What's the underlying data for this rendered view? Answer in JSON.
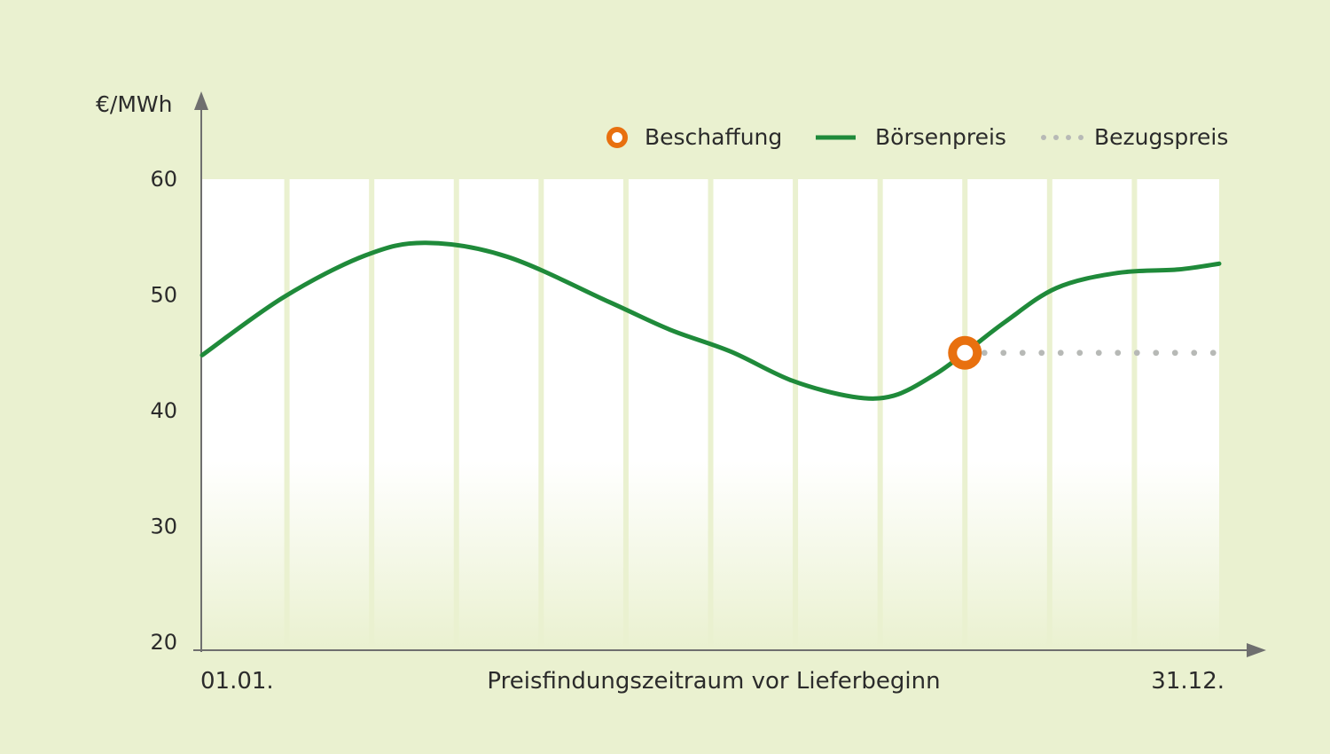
{
  "chart_data": {
    "type": "line",
    "ylabel": "€/MWh",
    "xlabel": "Preisfindungszeitraum vor Lieferbeginn",
    "x_start_label": "01.01.",
    "x_end_label": "31.12.",
    "ylim": [
      20,
      60
    ],
    "y_ticks": [
      "60",
      "50",
      "40",
      "30",
      "20"
    ],
    "legend": {
      "placement": "top-right",
      "items": [
        {
          "label": "Beschaffung",
          "marker": "ring",
          "color": "#e8700f"
        },
        {
          "label": "Börsenpreis",
          "marker": "line",
          "color": "#1f8a3a"
        },
        {
          "label": "Bezugspreis",
          "marker": "dots",
          "color": "#b7b9b6"
        }
      ]
    },
    "series": [
      {
        "name": "Börsenpreis",
        "color": "#1f8a3a",
        "x": [
          0,
          0.08,
          0.16,
          0.22,
          0.3,
          0.4,
          0.46,
          0.52,
          0.58,
          0.64,
          0.68,
          0.72,
          0.75,
          0.79,
          0.84,
          0.9,
          0.96,
          1.0
        ],
        "y": [
          44.8,
          49.8,
          53.4,
          54.5,
          53.3,
          49.4,
          47,
          45.1,
          42.6,
          41.2,
          41.3,
          43.1,
          45.0,
          47.7,
          50.6,
          51.9,
          52.2,
          52.7
        ]
      },
      {
        "name": "Bezugspreis",
        "color": "#b7b9b6",
        "x": [
          0.75,
          1.0
        ],
        "y": [
          45.0,
          45.0
        ]
      }
    ],
    "procurement_point": {
      "x": 0.75,
      "y": 45.0,
      "color": "#e8700f"
    },
    "grid": {
      "vertical_bands": 12,
      "band_color": "#eaf1d0"
    }
  }
}
